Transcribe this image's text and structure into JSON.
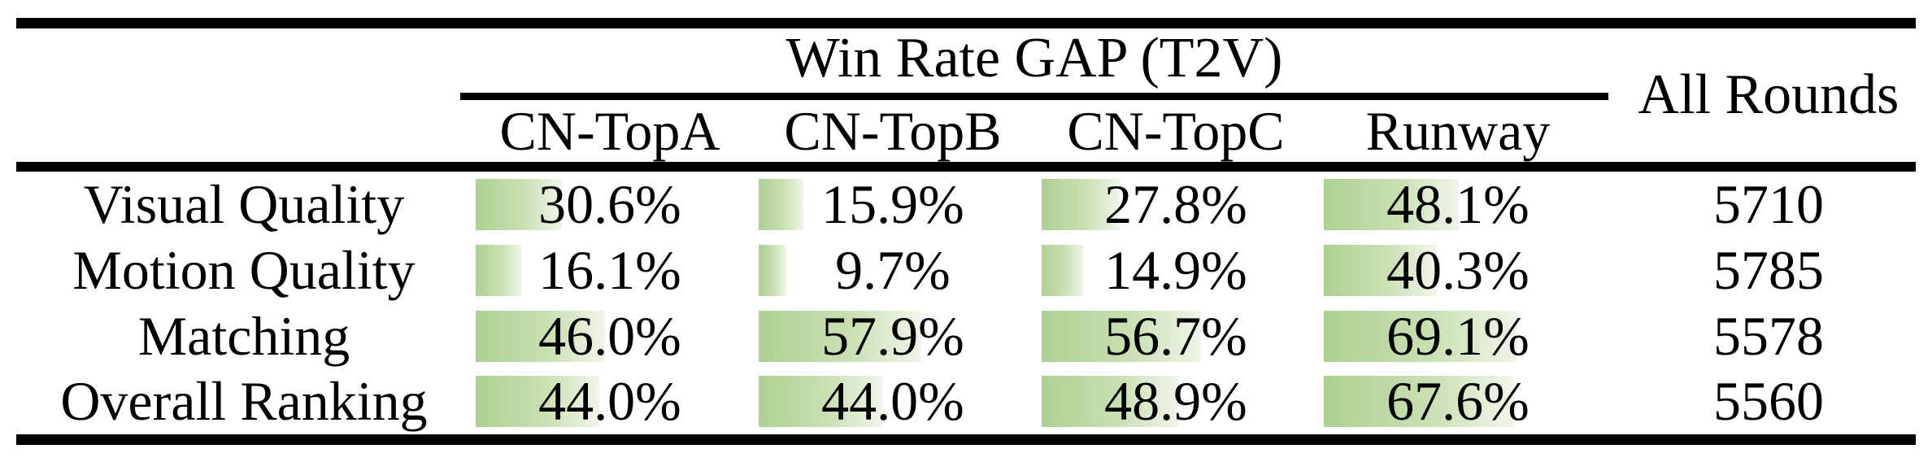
{
  "table": {
    "group_header": "Win Rate GAP (T2V)",
    "columns": [
      "CN-TopA",
      "CN-TopB",
      "CN-TopC",
      "Runway"
    ],
    "all_rounds_header": "All Rounds",
    "rows": [
      {
        "label": "Visual Quality",
        "cells": [
          {
            "pct": 30.6,
            "label": "30.6%"
          },
          {
            "pct": 15.9,
            "label": "15.9%"
          },
          {
            "pct": 27.8,
            "label": "27.8%"
          },
          {
            "pct": 48.1,
            "label": "48.1%"
          }
        ],
        "all_rounds": "5710"
      },
      {
        "label": "Motion Quality",
        "cells": [
          {
            "pct": 16.1,
            "label": "16.1%"
          },
          {
            "pct": 9.7,
            "label": "9.7%"
          },
          {
            "pct": 14.9,
            "label": "14.9%"
          },
          {
            "pct": 40.3,
            "label": "40.3%"
          }
        ],
        "all_rounds": "5785"
      },
      {
        "label": "Matching",
        "cells": [
          {
            "pct": 46.0,
            "label": "46.0%"
          },
          {
            "pct": 57.9,
            "label": "57.9%"
          },
          {
            "pct": 56.7,
            "label": "56.7%"
          },
          {
            "pct": 69.1,
            "label": "69.1%"
          }
        ],
        "all_rounds": "5578"
      },
      {
        "label": "Overall Ranking",
        "cells": [
          {
            "pct": 44.0,
            "label": "44.0%"
          },
          {
            "pct": 44.0,
            "label": "44.0%"
          },
          {
            "pct": 48.9,
            "label": "48.9%"
          },
          {
            "pct": 67.6,
            "label": "67.6%"
          }
        ],
        "all_rounds": "5560"
      }
    ]
  },
  "style": {
    "bar_gradient_start": "#aed092",
    "bar_gradient_mid": "#c9dfb2",
    "bar_gradient_end": "#f0f5ea",
    "rule_color": "#000000",
    "text_color": "#000000"
  },
  "chart_data": {
    "type": "table",
    "title": "Win Rate GAP (T2V)",
    "columns": [
      "CN-TopA",
      "CN-TopB",
      "CN-TopC",
      "Runway",
      "All Rounds"
    ],
    "categories": [
      "Visual Quality",
      "Motion Quality",
      "Matching",
      "Overall Ranking"
    ],
    "series": [
      {
        "name": "CN-TopA",
        "unit": "%",
        "values": [
          30.6,
          16.1,
          46.0,
          44.0
        ]
      },
      {
        "name": "CN-TopB",
        "unit": "%",
        "values": [
          15.9,
          9.7,
          57.9,
          44.0
        ]
      },
      {
        "name": "CN-TopC",
        "unit": "%",
        "values": [
          27.8,
          14.9,
          56.7,
          48.9
        ]
      },
      {
        "name": "Runway",
        "unit": "%",
        "values": [
          48.1,
          40.3,
          69.1,
          67.6
        ]
      },
      {
        "name": "All Rounds",
        "unit": "count",
        "values": [
          5710,
          5785,
          5578,
          5560
        ]
      }
    ],
    "layout_hints": {
      "data_bars": "green gradient bars left-anchored in each percent cell, width proportional to value on a 0-100% scale",
      "grid": false,
      "legend": false
    }
  }
}
